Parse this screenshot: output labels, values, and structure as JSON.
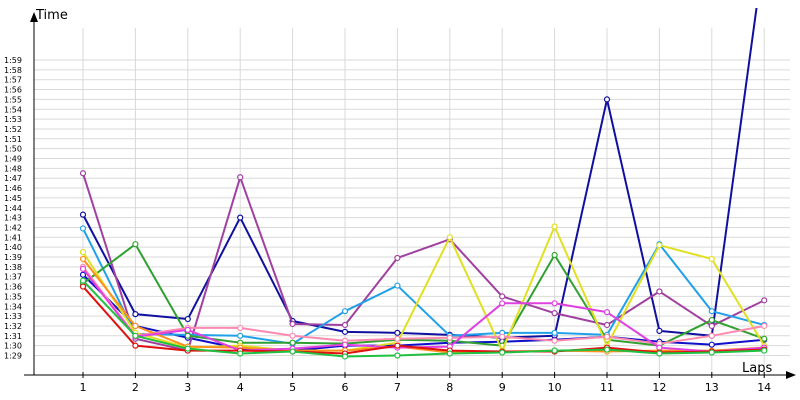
{
  "chart_data": {
    "type": "line",
    "xlabel": "Laps",
    "ylabel": "Time",
    "x": [
      1,
      2,
      3,
      4,
      5,
      6,
      7,
      8,
      9,
      10,
      11,
      12,
      13,
      14
    ],
    "y_tick_labels": [
      "1:29",
      "1:30",
      "1:31",
      "1:32",
      "1:33",
      "1:34",
      "1:35",
      "1:36",
      "1:37",
      "1:38",
      "1:39",
      "1:40",
      "1:41",
      "1:42",
      "1:43",
      "1:44",
      "1:45",
      "1:46",
      "1:47",
      "1:48",
      "1:49",
      "1:50",
      "1:51",
      "1:52",
      "1:53",
      "1:54",
      "1:55",
      "1:56",
      "1:57",
      "1:58",
      "1:59"
    ],
    "ylim_seconds": [
      86.2,
      122.5
    ],
    "grid": true,
    "legend": "none",
    "series": [
      {
        "color": "#1010a0",
        "values": [
          103.3,
          93.2,
          92.7,
          103.0,
          92.5,
          91.4,
          91.3,
          91.1,
          90.8,
          91.0,
          115.0,
          91.5,
          91.0,
          130.0
        ]
      },
      {
        "color": "#1010c8",
        "values": [
          97.2,
          92.0,
          90.8,
          89.7,
          89.5,
          90.0,
          90.0,
          90.3,
          90.4,
          90.6,
          90.9,
          90.4,
          90.1,
          90.6
        ]
      },
      {
        "color": "#a040a0",
        "values": [
          107.5,
          90.7,
          89.5,
          107.1,
          92.2,
          92.1,
          98.9,
          100.8,
          95.0,
          93.3,
          92.1,
          95.5,
          92.0,
          94.6
        ]
      },
      {
        "color": "#20a0e8",
        "values": [
          101.9,
          91.2,
          91.1,
          91.0,
          90.2,
          93.5,
          96.1,
          91.0,
          91.3,
          91.3,
          91.1,
          100.3,
          93.5,
          92.1
        ]
      },
      {
        "color": "#30a030",
        "values": [
          96.3,
          100.3,
          91.0,
          90.3,
          90.3,
          90.2,
          90.6,
          90.5,
          90.0,
          99.2,
          90.6,
          90.0,
          92.6,
          90.7
        ]
      },
      {
        "color": "#e0e020",
        "values": [
          99.5,
          91.3,
          89.8,
          90.0,
          89.5,
          89.5,
          90.3,
          101.0,
          89.5,
          102.1,
          90.0,
          100.2,
          98.8,
          90.0
        ]
      },
      {
        "color": "#ff8ab0",
        "values": [
          98.0,
          91.0,
          91.8,
          91.8,
          91.0,
          90.5,
          90.7,
          90.8,
          90.9,
          90.5,
          90.9,
          90.2,
          91.0,
          92.0
        ]
      },
      {
        "color": "#ff9020",
        "values": [
          98.8,
          92.0,
          89.9,
          89.8,
          89.5,
          89.5,
          89.9,
          89.3,
          89.4,
          89.5,
          89.4,
          89.5,
          89.5,
          89.8
        ]
      },
      {
        "color": "#e040e0",
        "values": [
          97.8,
          90.9,
          91.6,
          89.5,
          89.7,
          90.1,
          89.8,
          89.9,
          94.3,
          94.3,
          93.4,
          89.8,
          89.4,
          89.8
        ]
      },
      {
        "color": "#e01010",
        "values": [
          96.0,
          90.0,
          89.5,
          89.5,
          89.4,
          89.2,
          90.0,
          89.5,
          89.4,
          89.4,
          89.8,
          89.3,
          89.4,
          89.6
        ]
      },
      {
        "color": "#20c040",
        "values": [
          96.6,
          91.0,
          89.7,
          89.2,
          89.4,
          88.9,
          89.0,
          89.2,
          89.3,
          89.5,
          89.6,
          89.2,
          89.3,
          89.5
        ]
      }
    ]
  }
}
